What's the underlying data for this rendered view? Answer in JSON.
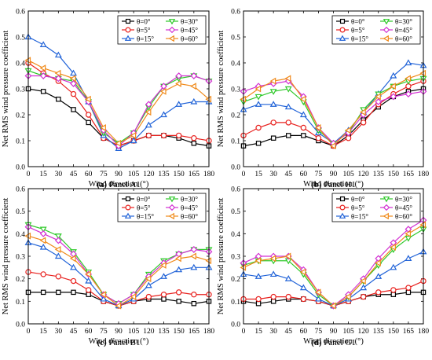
{
  "figure": {
    "ylabel": "Net RMS wind pressure coefficient",
    "xlabel": "Wind direction (°)"
  },
  "chart_data": [
    {
      "type": "line",
      "letter": "(a)",
      "caption": "Panel A1",
      "xlabel": "Wind direction (°)",
      "ylabel": "Net RMS wind pressure coefficient",
      "xlim": [
        0,
        180
      ],
      "ylim": [
        0.0,
        0.6
      ],
      "x_ticks": [
        0,
        15,
        30,
        45,
        60,
        75,
        90,
        105,
        120,
        135,
        150,
        165,
        180
      ],
      "y_ticks": [
        "0.0",
        "0.1",
        "0.2",
        "0.3",
        "0.4",
        "0.5",
        "0.6"
      ],
      "legend_position": "top-right",
      "x": [
        0,
        15,
        30,
        45,
        60,
        75,
        90,
        105,
        120,
        135,
        150,
        165,
        180
      ],
      "series": [
        {
          "name": "θ=0°",
          "color": "#000000",
          "marker": "square",
          "values": [
            0.3,
            0.29,
            0.26,
            0.22,
            0.17,
            0.11,
            0.08,
            0.1,
            0.12,
            0.12,
            0.11,
            0.09,
            0.08
          ]
        },
        {
          "name": "θ=5°",
          "color": "#e8211e",
          "marker": "circle",
          "values": [
            0.4,
            0.36,
            0.33,
            0.28,
            0.2,
            0.11,
            0.08,
            0.1,
            0.12,
            0.12,
            0.12,
            0.11,
            0.1
          ]
        },
        {
          "name": "θ=15°",
          "color": "#2163d8",
          "marker": "triangle-up",
          "values": [
            0.5,
            0.47,
            0.43,
            0.36,
            0.25,
            0.12,
            0.07,
            0.1,
            0.16,
            0.2,
            0.24,
            0.25,
            0.25
          ]
        },
        {
          "name": "θ=30°",
          "color": "#2fc92a",
          "marker": "triangle-down",
          "values": [
            0.37,
            0.35,
            0.34,
            0.33,
            0.25,
            0.13,
            0.09,
            0.13,
            0.23,
            0.31,
            0.34,
            0.35,
            0.33
          ]
        },
        {
          "name": "θ=45°",
          "color": "#d230d2",
          "marker": "diamond",
          "values": [
            0.35,
            0.35,
            0.34,
            0.32,
            0.25,
            0.14,
            0.08,
            0.13,
            0.24,
            0.31,
            0.35,
            0.35,
            0.33
          ]
        },
        {
          "name": "θ=60°",
          "color": "#f08a1a",
          "marker": "triangle-left",
          "values": [
            0.41,
            0.38,
            0.36,
            0.34,
            0.26,
            0.15,
            0.09,
            0.12,
            0.21,
            0.29,
            0.32,
            0.31,
            0.26
          ]
        }
      ]
    },
    {
      "type": "line",
      "letter": "(b)",
      "caption": "Panel H1",
      "xlabel": "Wind direction (°)",
      "ylabel": "Net RMS wind pressure coefficient",
      "xlim": [
        0,
        180
      ],
      "ylim": [
        0.0,
        0.6
      ],
      "x_ticks": [
        0,
        15,
        30,
        45,
        60,
        75,
        90,
        105,
        120,
        135,
        150,
        165,
        180
      ],
      "y_ticks": [
        "0.0",
        "0.1",
        "0.2",
        "0.3",
        "0.4",
        "0.5",
        "0.6"
      ],
      "legend_position": "top-right",
      "x": [
        0,
        15,
        30,
        45,
        60,
        75,
        90,
        105,
        120,
        135,
        150,
        165,
        180
      ],
      "series": [
        {
          "name": "θ=0°",
          "color": "#000000",
          "marker": "square",
          "values": [
            0.08,
            0.09,
            0.11,
            0.12,
            0.12,
            0.1,
            0.08,
            0.12,
            0.18,
            0.23,
            0.27,
            0.29,
            0.3
          ]
        },
        {
          "name": "θ=5°",
          "color": "#e8211e",
          "marker": "circle",
          "values": [
            0.12,
            0.15,
            0.17,
            0.17,
            0.15,
            0.11,
            0.08,
            0.11,
            0.17,
            0.24,
            0.28,
            0.31,
            0.33
          ]
        },
        {
          "name": "θ=15°",
          "color": "#2163d8",
          "marker": "triangle-up",
          "values": [
            0.22,
            0.24,
            0.24,
            0.23,
            0.2,
            0.13,
            0.09,
            0.14,
            0.21,
            0.28,
            0.35,
            0.4,
            0.39
          ]
        },
        {
          "name": "θ=30°",
          "color": "#2fc92a",
          "marker": "triangle-down",
          "values": [
            0.25,
            0.27,
            0.29,
            0.3,
            0.25,
            0.14,
            0.09,
            0.13,
            0.22,
            0.28,
            0.31,
            0.33,
            0.34
          ]
        },
        {
          "name": "θ=45°",
          "color": "#d230d2",
          "marker": "diamond",
          "values": [
            0.29,
            0.31,
            0.32,
            0.33,
            0.27,
            0.15,
            0.09,
            0.13,
            0.2,
            0.25,
            0.27,
            0.28,
            0.29
          ]
        },
        {
          "name": "θ=60°",
          "color": "#f08a1a",
          "marker": "triangle-left",
          "values": [
            0.26,
            0.3,
            0.33,
            0.34,
            0.26,
            0.15,
            0.08,
            0.14,
            0.21,
            0.27,
            0.31,
            0.34,
            0.36
          ]
        }
      ]
    },
    {
      "type": "line",
      "letter": "(c)",
      "caption": "Panel B1",
      "xlabel": "Wind direction (°)",
      "ylabel": "Net RMS wind pressure coefficient",
      "xlim": [
        0,
        180
      ],
      "ylim": [
        0.0,
        0.6
      ],
      "x_ticks": [
        0,
        15,
        30,
        45,
        60,
        75,
        90,
        105,
        120,
        135,
        150,
        165,
        180
      ],
      "y_ticks": [
        "0.0",
        "0.1",
        "0.2",
        "0.3",
        "0.4",
        "0.5",
        "0.6"
      ],
      "legend_position": "top-right",
      "x": [
        0,
        15,
        30,
        45,
        60,
        75,
        90,
        105,
        120,
        135,
        150,
        165,
        180
      ],
      "series": [
        {
          "name": "θ=0°",
          "color": "#000000",
          "marker": "square",
          "values": [
            0.14,
            0.14,
            0.14,
            0.14,
            0.13,
            0.1,
            0.08,
            0.1,
            0.11,
            0.11,
            0.1,
            0.09,
            0.1
          ]
        },
        {
          "name": "θ=5°",
          "color": "#e8211e",
          "marker": "circle",
          "values": [
            0.23,
            0.22,
            0.21,
            0.19,
            0.15,
            0.1,
            0.08,
            0.1,
            0.12,
            0.13,
            0.14,
            0.13,
            0.13
          ]
        },
        {
          "name": "θ=15°",
          "color": "#2163d8",
          "marker": "triangle-up",
          "values": [
            0.36,
            0.34,
            0.3,
            0.25,
            0.19,
            0.11,
            0.08,
            0.11,
            0.17,
            0.21,
            0.24,
            0.25,
            0.25
          ]
        },
        {
          "name": "θ=30°",
          "color": "#2fc92a",
          "marker": "triangle-down",
          "values": [
            0.44,
            0.42,
            0.39,
            0.32,
            0.23,
            0.13,
            0.09,
            0.13,
            0.22,
            0.28,
            0.31,
            0.33,
            0.33
          ]
        },
        {
          "name": "θ=45°",
          "color": "#d230d2",
          "marker": "diamond",
          "values": [
            0.43,
            0.4,
            0.37,
            0.31,
            0.22,
            0.13,
            0.09,
            0.13,
            0.21,
            0.27,
            0.31,
            0.33,
            0.32
          ]
        },
        {
          "name": "θ=60°",
          "color": "#f08a1a",
          "marker": "triangle-left",
          "values": [
            0.39,
            0.37,
            0.33,
            0.29,
            0.22,
            0.13,
            0.08,
            0.12,
            0.2,
            0.26,
            0.29,
            0.3,
            0.28
          ]
        }
      ]
    },
    {
      "type": "line",
      "letter": "(d)",
      "caption": "Panel G1",
      "xlabel": "Wind direction (°)",
      "ylabel": "Net RMS wind pressure coefficient",
      "xlim": [
        0,
        180
      ],
      "ylim": [
        0.0,
        0.6
      ],
      "x_ticks": [
        0,
        15,
        30,
        45,
        60,
        75,
        90,
        105,
        120,
        135,
        150,
        165,
        180
      ],
      "y_ticks": [
        "0.0",
        "0.1",
        "0.2",
        "0.3",
        "0.4",
        "0.5",
        "0.6"
      ],
      "legend_position": "top-right",
      "x": [
        0,
        15,
        30,
        45,
        60,
        75,
        90,
        105,
        120,
        135,
        150,
        165,
        180
      ],
      "series": [
        {
          "name": "θ=0°",
          "color": "#000000",
          "marker": "square",
          "values": [
            0.1,
            0.09,
            0.1,
            0.11,
            0.11,
            0.1,
            0.08,
            0.1,
            0.12,
            0.13,
            0.13,
            0.14,
            0.14
          ]
        },
        {
          "name": "θ=5°",
          "color": "#e8211e",
          "marker": "circle",
          "values": [
            0.11,
            0.11,
            0.12,
            0.12,
            0.11,
            0.1,
            0.08,
            0.1,
            0.12,
            0.14,
            0.15,
            0.16,
            0.19
          ]
        },
        {
          "name": "θ=15°",
          "color": "#2163d8",
          "marker": "triangle-up",
          "values": [
            0.22,
            0.21,
            0.22,
            0.2,
            0.16,
            0.11,
            0.08,
            0.11,
            0.16,
            0.21,
            0.25,
            0.29,
            0.32
          ]
        },
        {
          "name": "θ=30°",
          "color": "#2fc92a",
          "marker": "triangle-down",
          "values": [
            0.26,
            0.28,
            0.28,
            0.28,
            0.22,
            0.13,
            0.08,
            0.12,
            0.19,
            0.26,
            0.33,
            0.38,
            0.42
          ]
        },
        {
          "name": "θ=45°",
          "color": "#d230d2",
          "marker": "diamond",
          "values": [
            0.27,
            0.3,
            0.3,
            0.3,
            0.24,
            0.14,
            0.08,
            0.13,
            0.2,
            0.29,
            0.36,
            0.42,
            0.46
          ]
        },
        {
          "name": "θ=60°",
          "color": "#f08a1a",
          "marker": "triangle-left",
          "values": [
            0.25,
            0.28,
            0.29,
            0.3,
            0.23,
            0.14,
            0.08,
            0.12,
            0.19,
            0.27,
            0.34,
            0.4,
            0.44
          ]
        }
      ]
    }
  ]
}
